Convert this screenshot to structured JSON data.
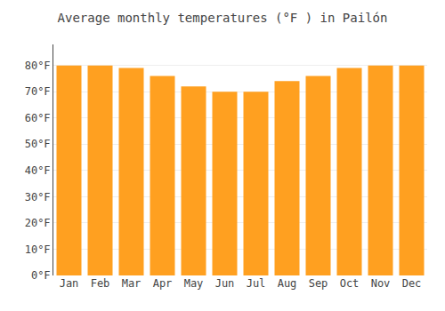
{
  "chart_data": {
    "type": "bar",
    "title": "Average monthly temperatures (°F ) in Pailón",
    "categories": [
      "Jan",
      "Feb",
      "Mar",
      "Apr",
      "May",
      "Jun",
      "Jul",
      "Aug",
      "Sep",
      "Oct",
      "Nov",
      "Dec"
    ],
    "values": [
      80,
      80,
      79,
      76,
      72,
      70,
      70,
      74,
      76,
      79,
      80,
      80
    ],
    "color": "#FFA020",
    "ylim": [
      0,
      88
    ],
    "yticks": [
      {
        "value": 0,
        "label": "0°F"
      },
      {
        "value": 10,
        "label": "10°F"
      },
      {
        "value": 20,
        "label": "20°F"
      },
      {
        "value": 30,
        "label": "30°F"
      },
      {
        "value": 40,
        "label": "40°F"
      },
      {
        "value": 50,
        "label": "50°F"
      },
      {
        "value": 60,
        "label": "60°F"
      },
      {
        "value": 70,
        "label": "70°F"
      },
      {
        "value": 80,
        "label": "80°F"
      }
    ],
    "grid": true
  }
}
